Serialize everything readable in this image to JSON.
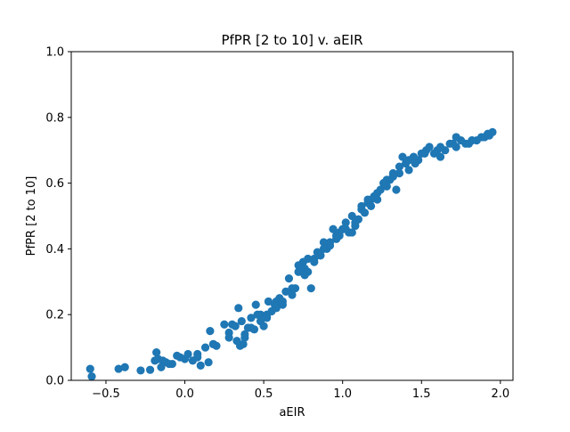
{
  "chart_data": {
    "type": "scatter",
    "title": "PfPR [2 to 10] v. aEIR",
    "xlabel": "aEIR",
    "ylabel": "PfPR [2 to 10]",
    "xlim": [
      -0.72,
      2.08
    ],
    "ylim": [
      0.0,
      1.0
    ],
    "xticks": [
      -0.5,
      0.0,
      0.5,
      1.0,
      1.5,
      2.0
    ],
    "xtick_labels": [
      "−0.5",
      "0.0",
      "0.5",
      "1.0",
      "1.5",
      "2.0"
    ],
    "yticks": [
      0.0,
      0.2,
      0.4,
      0.6,
      0.8,
      1.0
    ],
    "ytick_labels": [
      "0.0",
      "0.2",
      "0.4",
      "0.6",
      "0.8",
      "1.0"
    ],
    "grid": false,
    "legend": "none",
    "marker_color": "#1f77b4",
    "series": [
      {
        "x": [
          -0.6,
          -0.59,
          -0.42,
          -0.38,
          -0.28,
          -0.22,
          -0.19,
          -0.18,
          -0.17,
          -0.15,
          -0.14,
          -0.12,
          -0.1,
          -0.05,
          -0.03,
          0.0,
          0.02,
          0.05,
          0.08,
          0.1,
          0.13,
          0.15,
          0.16,
          0.18,
          0.2,
          0.25,
          0.28,
          0.3,
          0.32,
          0.34,
          0.35,
          0.36,
          0.37,
          0.38,
          0.4,
          0.42,
          0.44,
          0.45,
          0.46,
          0.48,
          0.5,
          0.52,
          0.53,
          0.55,
          0.57,
          0.58,
          0.6,
          0.62,
          0.64,
          0.66,
          0.68,
          0.7,
          0.72,
          0.74,
          0.75,
          0.76,
          0.78,
          0.8,
          0.82,
          0.84,
          0.86,
          0.88,
          0.9,
          0.92,
          0.94,
          0.96,
          0.98,
          1.0,
          1.02,
          1.04,
          1.06,
          1.08,
          1.1,
          1.12,
          1.14,
          1.16,
          1.18,
          1.2,
          1.22,
          1.24,
          1.26,
          1.28,
          1.3,
          1.32,
          1.34,
          1.36,
          1.38,
          1.4,
          1.42,
          1.45,
          1.48,
          1.5,
          1.53,
          1.55,
          1.58,
          1.6,
          1.62,
          1.65,
          1.68,
          1.7,
          1.72,
          1.75,
          1.78,
          1.8,
          1.82,
          1.85,
          1.88,
          1.9,
          1.93,
          1.95,
          0.78,
          0.88,
          0.98,
          1.08,
          1.18,
          1.28,
          0.62,
          0.52,
          0.42,
          0.33,
          0.72,
          0.82,
          0.92,
          1.02,
          1.12,
          1.22,
          1.32,
          1.42,
          1.52,
          1.62,
          1.72,
          1.82,
          1.92,
          0.68,
          0.76,
          0.86,
          0.96,
          1.06,
          1.16,
          1.26,
          1.36,
          1.46,
          0.58,
          0.48,
          0.38,
          0.28,
          0.18,
          0.08,
          -0.08
        ],
        "y": [
          0.035,
          0.012,
          0.035,
          0.04,
          0.03,
          0.032,
          0.06,
          0.085,
          0.065,
          0.04,
          0.06,
          0.055,
          0.05,
          0.075,
          0.07,
          0.065,
          0.08,
          0.06,
          0.08,
          0.045,
          0.1,
          0.055,
          0.15,
          0.11,
          0.105,
          0.17,
          0.145,
          0.17,
          0.165,
          0.22,
          0.105,
          0.18,
          0.11,
          0.13,
          0.16,
          0.19,
          0.155,
          0.23,
          0.2,
          0.2,
          0.165,
          0.2,
          0.24,
          0.21,
          0.23,
          0.24,
          0.25,
          0.23,
          0.27,
          0.31,
          0.26,
          0.28,
          0.35,
          0.33,
          0.36,
          0.34,
          0.33,
          0.28,
          0.37,
          0.39,
          0.38,
          0.42,
          0.4,
          0.41,
          0.46,
          0.43,
          0.44,
          0.46,
          0.48,
          0.45,
          0.45,
          0.47,
          0.49,
          0.52,
          0.51,
          0.54,
          0.53,
          0.56,
          0.55,
          0.58,
          0.6,
          0.59,
          0.61,
          0.62,
          0.58,
          0.65,
          0.68,
          0.66,
          0.67,
          0.68,
          0.67,
          0.69,
          0.7,
          0.71,
          0.69,
          0.7,
          0.68,
          0.7,
          0.72,
          0.72,
          0.71,
          0.73,
          0.72,
          0.72,
          0.73,
          0.73,
          0.74,
          0.74,
          0.745,
          0.755,
          0.37,
          0.4,
          0.45,
          0.48,
          0.55,
          0.61,
          0.24,
          0.19,
          0.16,
          0.12,
          0.33,
          0.36,
          0.42,
          0.46,
          0.53,
          0.57,
          0.63,
          0.64,
          0.69,
          0.71,
          0.74,
          0.73,
          0.75,
          0.28,
          0.32,
          0.38,
          0.44,
          0.5,
          0.55,
          0.6,
          0.63,
          0.66,
          0.22,
          0.18,
          0.14,
          0.13,
          0.11,
          0.07,
          0.05
        ]
      }
    ]
  }
}
